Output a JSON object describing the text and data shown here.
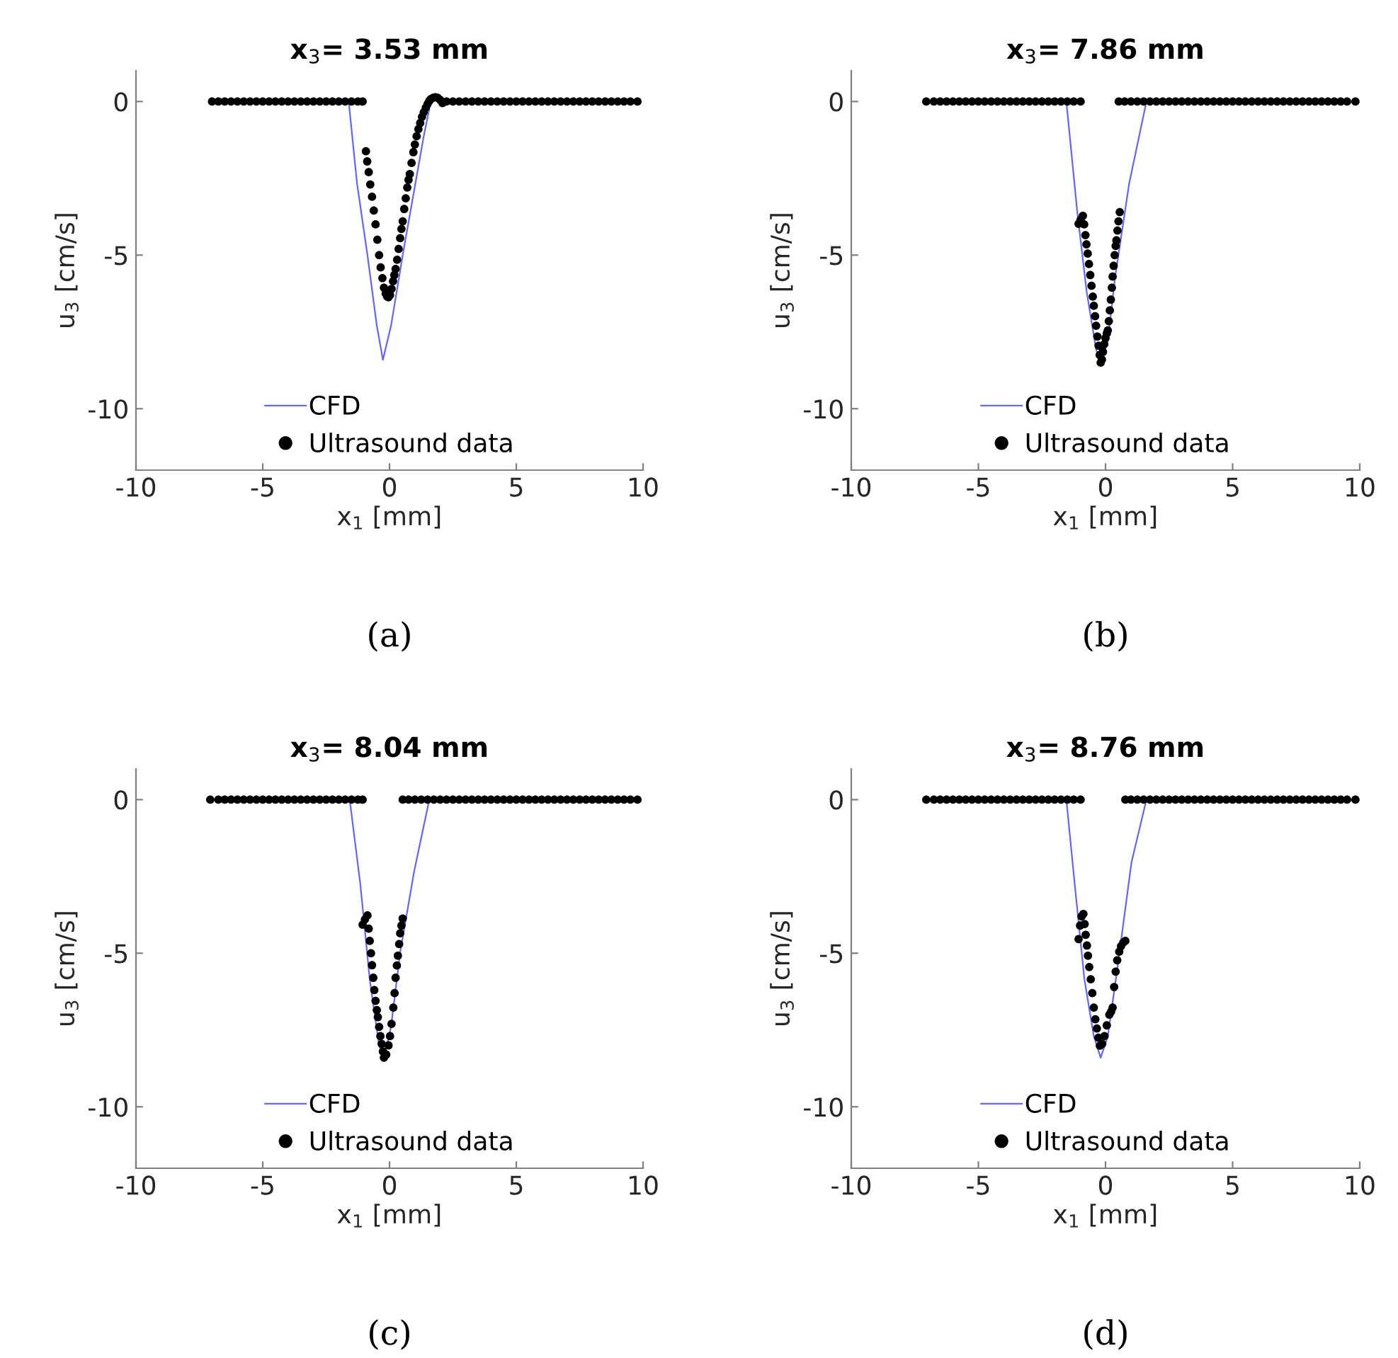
{
  "chart_data": [
    {
      "type": "line",
      "title": "x$_{3}$= 3.53 mm",
      "xlabel": "x$_{1}$ [mm]",
      "ylabel": "u$_{3}$ [cm/s]",
      "annotations": [
        "(a)"
      ],
      "xlim": [
        -10,
        10
      ],
      "ylim": [
        -12,
        1
      ],
      "xticks": [
        -10,
        -5,
        0,
        5,
        10
      ],
      "yticks": [
        -10,
        -5,
        0
      ],
      "legend": "bottom",
      "grid": false,
      "series": [
        {
          "name": "CFD",
          "color": "#6666ff",
          "x": [
            -1.61,
            -1.28,
            -0.87,
            -0.5,
            -0.26,
            0.06,
            0.52,
            1.02,
            1.35,
            1.63
          ],
          "values": [
            0,
            -2.67,
            -5.0,
            -7.3,
            -8.41,
            -7.3,
            -5.0,
            -2.67,
            -1.13,
            0
          ]
        },
        {
          "name": "Ultrasound data",
          "type": "scatter",
          "marker": "circle",
          "color": "#000000",
          "x": [
            -7.0,
            -6.75,
            -6.5,
            -6.25,
            -6.0,
            -5.75,
            -5.5,
            -5.25,
            -5.0,
            -4.75,
            -4.5,
            -4.25,
            -4.0,
            -3.75,
            -3.5,
            -3.25,
            -3.0,
            -2.75,
            -2.5,
            -2.25,
            -2.0,
            -1.75,
            -1.5,
            -1.25,
            -1.06,
            -0.93,
            -0.88,
            -0.82,
            -0.76,
            -0.69,
            -0.62,
            -0.55,
            -0.48,
            -0.41,
            -0.35,
            -0.28,
            -0.22,
            -0.15,
            -0.09,
            -0.04,
            0.02,
            0.08,
            0.14,
            0.19,
            0.24,
            0.3,
            0.36,
            0.42,
            0.47,
            0.52,
            0.58,
            0.64,
            0.7,
            0.75,
            0.8,
            0.87,
            0.94,
            1.0,
            1.07,
            1.14,
            1.21,
            1.28,
            1.35,
            1.43,
            1.5,
            1.57,
            1.63,
            1.72,
            1.81,
            1.9,
            2.0,
            2.09,
            2.25,
            2.5,
            2.75,
            3.0,
            3.25,
            3.5,
            3.75,
            4.0,
            4.25,
            4.5,
            4.75,
            5.0,
            5.25,
            5.5,
            5.75,
            6.0,
            6.25,
            6.5,
            6.75,
            7.0,
            7.25,
            7.5,
            7.75,
            8.0,
            8.25,
            8.5,
            8.75,
            9.0,
            9.25,
            9.5,
            9.78
          ],
          "values": [
            0,
            0,
            0,
            0,
            0,
            0,
            0,
            0,
            0,
            0,
            0,
            0,
            0,
            0,
            0,
            0,
            0,
            0,
            0,
            0,
            0,
            0,
            0,
            0,
            0,
            -1.62,
            -1.95,
            -2.3,
            -2.7,
            -3.1,
            -3.55,
            -4.0,
            -4.5,
            -5.0,
            -5.4,
            -5.75,
            -6.06,
            -6.25,
            -6.35,
            -6.37,
            -6.3,
            -6.1,
            -5.85,
            -5.65,
            -5.45,
            -5.15,
            -4.8,
            -4.45,
            -4.15,
            -3.9,
            -3.5,
            -3.15,
            -2.8,
            -2.55,
            -2.36,
            -2.0,
            -1.65,
            -1.4,
            -1.13,
            -0.9,
            -0.7,
            -0.5,
            -0.35,
            -0.2,
            -0.08,
            0.02,
            0.08,
            0.12,
            0.14,
            0.12,
            0.05,
            -0.05,
            0,
            0,
            0,
            0,
            0,
            0,
            0,
            0,
            0,
            0,
            0,
            0,
            0,
            0,
            0,
            0,
            0,
            0,
            0,
            0,
            0,
            0,
            0,
            0,
            0,
            0,
            0,
            0,
            0,
            0,
            0
          ]
        }
      ]
    },
    {
      "type": "line",
      "title": "x$_{3}$= 7.86 mm",
      "xlabel": "x$_{1}$ [mm]",
      "ylabel": "u$_{3}$ [cm/s]",
      "annotations": [
        "(b)"
      ],
      "xlim": [
        -10,
        10
      ],
      "ylim": [
        -12,
        1
      ],
      "xticks": [
        -10,
        -5,
        0,
        5,
        10
      ],
      "yticks": [
        -10,
        -5,
        0
      ],
      "legend": "bottom",
      "grid": false,
      "series": [
        {
          "name": "CFD",
          "color": "#6666ff",
          "x": [
            -1.54,
            -1.11,
            -0.74,
            -0.37,
            -0.19,
            0.09,
            0.37,
            0.93,
            1.61
          ],
          "values": [
            0,
            -3.6,
            -6.2,
            -8.07,
            -8.53,
            -7.8,
            -5.76,
            -2.67,
            0
          ]
        },
        {
          "name": "Ultrasound data",
          "type": "scatter",
          "marker": "circle",
          "color": "#000000",
          "x": [
            -7.05,
            -6.75,
            -6.5,
            -6.25,
            -6.0,
            -5.75,
            -5.5,
            -5.25,
            -5.0,
            -4.75,
            -4.5,
            -4.25,
            -4.0,
            -3.75,
            -3.5,
            -3.25,
            -3.0,
            -2.75,
            -2.5,
            -2.25,
            -2.0,
            -1.75,
            -1.5,
            -1.25,
            -0.98,
            -1.06,
            -0.98,
            -0.89,
            -0.84,
            -0.79,
            -0.75,
            -0.7,
            -0.65,
            -0.6,
            -0.55,
            -0.5,
            -0.46,
            -0.41,
            -0.37,
            -0.32,
            -0.27,
            -0.23,
            -0.19,
            -0.14,
            -0.1,
            -0.05,
            0.0,
            0.05,
            0.09,
            0.13,
            0.17,
            0.21,
            0.25,
            0.28,
            0.32,
            0.36,
            0.4,
            0.43,
            0.47,
            0.51,
            0.56,
            0.52,
            0.75,
            1.0,
            1.25,
            1.5,
            1.75,
            2.0,
            2.25,
            2.5,
            2.75,
            3.0,
            3.25,
            3.5,
            3.75,
            4.0,
            4.25,
            4.5,
            4.75,
            5.0,
            5.25,
            5.5,
            5.75,
            6.0,
            6.25,
            6.5,
            6.75,
            7.0,
            7.25,
            7.5,
            7.75,
            8.0,
            8.25,
            8.5,
            8.75,
            9.0,
            9.25,
            9.5,
            9.83
          ],
          "values": [
            0,
            0,
            0,
            0,
            0,
            0,
            0,
            0,
            0,
            0,
            0,
            0,
            0,
            0,
            0,
            0,
            0,
            0,
            0,
            0,
            0,
            0,
            0,
            0,
            0,
            -3.98,
            -3.85,
            -3.72,
            -4.0,
            -4.35,
            -4.65,
            -4.95,
            -5.29,
            -5.65,
            -6.0,
            -6.35,
            -6.65,
            -6.99,
            -7.3,
            -7.65,
            -7.95,
            -8.25,
            -8.5,
            -8.4,
            -8.15,
            -7.9,
            -7.7,
            -7.55,
            -7.45,
            -7.15,
            -6.8,
            -6.45,
            -6.06,
            -5.7,
            -5.35,
            -5.0,
            -4.7,
            -4.52,
            -4.2,
            -3.9,
            -3.6,
            0,
            0,
            0,
            0,
            0,
            0,
            0,
            0,
            0,
            0,
            0,
            0,
            0,
            0,
            0,
            0,
            0,
            0,
            0,
            0,
            0,
            0,
            0,
            0,
            0,
            0,
            0,
            0,
            0,
            0,
            0,
            0,
            0,
            0,
            0,
            0,
            0,
            0
          ]
        }
      ]
    },
    {
      "type": "line",
      "title": "x$_{3}$= 8.04 mm",
      "xlabel": "x$_{1}$ [mm]",
      "ylabel": "u$_{3}$ [cm/s]",
      "annotations": [
        "(c)"
      ],
      "xlim": [
        -10,
        10
      ],
      "ylim": [
        -12,
        1
      ],
      "xticks": [
        -10,
        -5,
        0,
        5,
        10
      ],
      "yticks": [
        -10,
        -5,
        0
      ],
      "legend": "bottom",
      "grid": false,
      "series": [
        {
          "name": "CFD",
          "color": "#6666ff",
          "x": [
            -1.57,
            -1.15,
            -0.78,
            -0.41,
            -0.22,
            0.06,
            0.43,
            0.98,
            1.57
          ],
          "values": [
            0,
            -2.76,
            -5.85,
            -8.0,
            -8.4,
            -7.4,
            -4.92,
            -2.3,
            0
          ]
        },
        {
          "name": "Ultrasound data",
          "type": "scatter",
          "marker": "circle",
          "color": "#000000",
          "x": [
            -7.07,
            -6.75,
            -6.5,
            -6.25,
            -6.0,
            -5.75,
            -5.5,
            -5.25,
            -5.0,
            -4.75,
            -4.5,
            -4.25,
            -4.0,
            -3.75,
            -3.5,
            -3.25,
            -3.0,
            -2.75,
            -2.5,
            -2.25,
            -2.0,
            -1.75,
            -1.5,
            -1.25,
            -1.06,
            -1.06,
            -0.97,
            -0.87,
            -0.82,
            -0.78,
            -0.73,
            -0.69,
            -0.64,
            -0.6,
            -0.55,
            -0.5,
            -0.46,
            -0.41,
            -0.36,
            -0.31,
            -0.26,
            -0.22,
            -0.13,
            -0.04,
            0.02,
            0.08,
            0.15,
            0.2,
            0.24,
            0.29,
            0.33,
            0.38,
            0.42,
            0.47,
            0.52,
            0.52,
            0.75,
            1.0,
            1.25,
            1.5,
            1.75,
            2.0,
            2.25,
            2.5,
            2.75,
            3.0,
            3.25,
            3.5,
            3.75,
            4.0,
            4.25,
            4.5,
            4.75,
            5.0,
            5.25,
            5.5,
            5.75,
            6.0,
            6.25,
            6.5,
            6.75,
            7.0,
            7.25,
            7.5,
            7.75,
            8.0,
            8.25,
            8.5,
            8.75,
            9.0,
            9.25,
            9.5,
            9.78
          ],
          "values": [
            0,
            0,
            0,
            0,
            0,
            0,
            0,
            0,
            0,
            0,
            0,
            0,
            0,
            0,
            0,
            0,
            0,
            0,
            0,
            0,
            0,
            0,
            0,
            0,
            0,
            -4.07,
            -3.9,
            -3.77,
            -4.2,
            -4.6,
            -5.0,
            -5.39,
            -5.8,
            -6.2,
            -6.55,
            -6.85,
            -7.08,
            -7.4,
            -7.7,
            -7.95,
            -8.2,
            -8.4,
            -8.3,
            -8.0,
            -7.7,
            -7.3,
            -6.77,
            -6.3,
            -5.8,
            -5.4,
            -5.08,
            -4.7,
            -4.35,
            -4.1,
            -3.87,
            0,
            0,
            0,
            0,
            0,
            0,
            0,
            0,
            0,
            0,
            0,
            0,
            0,
            0,
            0,
            0,
            0,
            0,
            0,
            0,
            0,
            0,
            0,
            0,
            0,
            0,
            0,
            0,
            0,
            0,
            0,
            0,
            0,
            0,
            0,
            0,
            0,
            0
          ]
        }
      ]
    },
    {
      "type": "line",
      "title": "x$_{3}$= 8.76 mm",
      "xlabel": "x$_{1}$ [mm]",
      "ylabel": "u$_{3}$ [cm/s]",
      "annotations": [
        "(d)"
      ],
      "xlim": [
        -10,
        10
      ],
      "ylim": [
        -12,
        1
      ],
      "xticks": [
        -10,
        -5,
        0,
        5,
        10
      ],
      "yticks": [
        -10,
        -5,
        0
      ],
      "legend": "bottom",
      "grid": false,
      "series": [
        {
          "name": "CFD",
          "color": "#6666ff",
          "x": [
            -1.54,
            -1.21,
            -0.83,
            -0.46,
            -0.19,
            0.09,
            0.46,
            1.02,
            1.61
          ],
          "values": [
            0,
            -2.76,
            -5.85,
            -7.7,
            -8.4,
            -7.7,
            -5.54,
            -2.05,
            0
          ]
        },
        {
          "name": "Ultrasound data",
          "type": "scatter",
          "marker": "circle",
          "color": "#000000",
          "x": [
            -7.05,
            -6.75,
            -6.5,
            -6.25,
            -6.0,
            -5.75,
            -5.5,
            -5.25,
            -5.0,
            -4.75,
            -4.5,
            -4.25,
            -4.0,
            -3.75,
            -3.5,
            -3.25,
            -3.0,
            -2.75,
            -2.5,
            -2.25,
            -2.0,
            -1.75,
            -1.5,
            -1.25,
            -0.98,
            -1.06,
            -1.0,
            -0.94,
            -0.87,
            -0.82,
            -0.78,
            -0.73,
            -0.69,
            -0.64,
            -0.58,
            -0.52,
            -0.46,
            -0.4,
            -0.34,
            -0.28,
            -0.22,
            -0.13,
            -0.04,
            0.05,
            0.15,
            0.22,
            0.28,
            0.34,
            0.4,
            0.46,
            0.54,
            0.61,
            0.7,
            0.78,
            0.78,
            1.0,
            1.25,
            1.5,
            1.75,
            2.0,
            2.25,
            2.5,
            2.75,
            3.0,
            3.25,
            3.5,
            3.75,
            4.0,
            4.25,
            4.5,
            4.75,
            5.0,
            5.25,
            5.5,
            5.75,
            6.0,
            6.25,
            6.5,
            6.75,
            7.0,
            7.25,
            7.5,
            7.75,
            8.0,
            8.25,
            8.5,
            8.75,
            9.0,
            9.25,
            9.5,
            9.83
          ],
          "values": [
            0,
            0,
            0,
            0,
            0,
            0,
            0,
            0,
            0,
            0,
            0,
            0,
            0,
            0,
            0,
            0,
            0,
            0,
            0,
            0,
            0,
            0,
            0,
            0,
            0,
            -4.54,
            -4.1,
            -3.8,
            -3.72,
            -4.05,
            -4.4,
            -4.75,
            -5.08,
            -5.45,
            -5.85,
            -6.3,
            -6.77,
            -7.15,
            -7.45,
            -7.75,
            -8.01,
            -7.95,
            -7.7,
            -7.35,
            -7.0,
            -6.9,
            -6.77,
            -6.1,
            -5.6,
            -5.23,
            -4.95,
            -4.77,
            -4.65,
            -4.6,
            0,
            0,
            0,
            0,
            0,
            0,
            0,
            0,
            0,
            0,
            0,
            0,
            0,
            0,
            0,
            0,
            0,
            0,
            0,
            0,
            0,
            0,
            0,
            0,
            0,
            0,
            0,
            0,
            0,
            0,
            0,
            0,
            0,
            0,
            0,
            0,
            0
          ]
        }
      ]
    }
  ]
}
